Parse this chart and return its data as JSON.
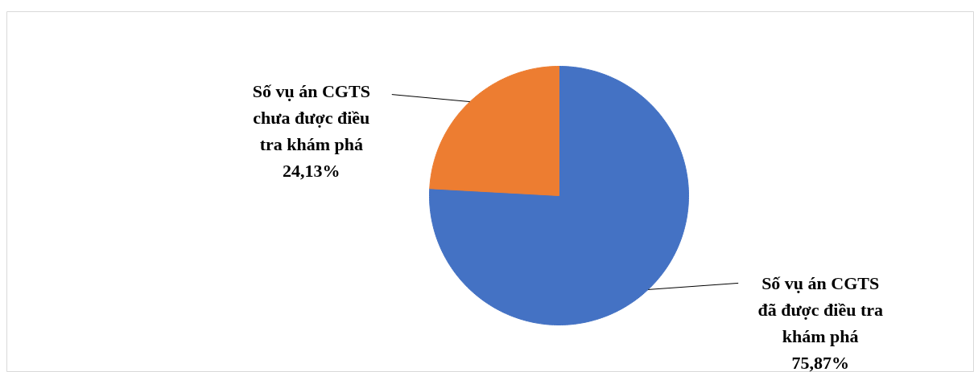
{
  "chart_data": {
    "type": "pie",
    "categories": [
      "Số vụ án CGTS đã được điều tra khám phá",
      "Số vụ án CGTS chưa được điều tra khám phá"
    ],
    "values": [
      75.87,
      24.13
    ],
    "colors": [
      "#4472c4",
      "#ed7d31"
    ],
    "value_labels": [
      "75,87%",
      "24,13%"
    ]
  }
}
